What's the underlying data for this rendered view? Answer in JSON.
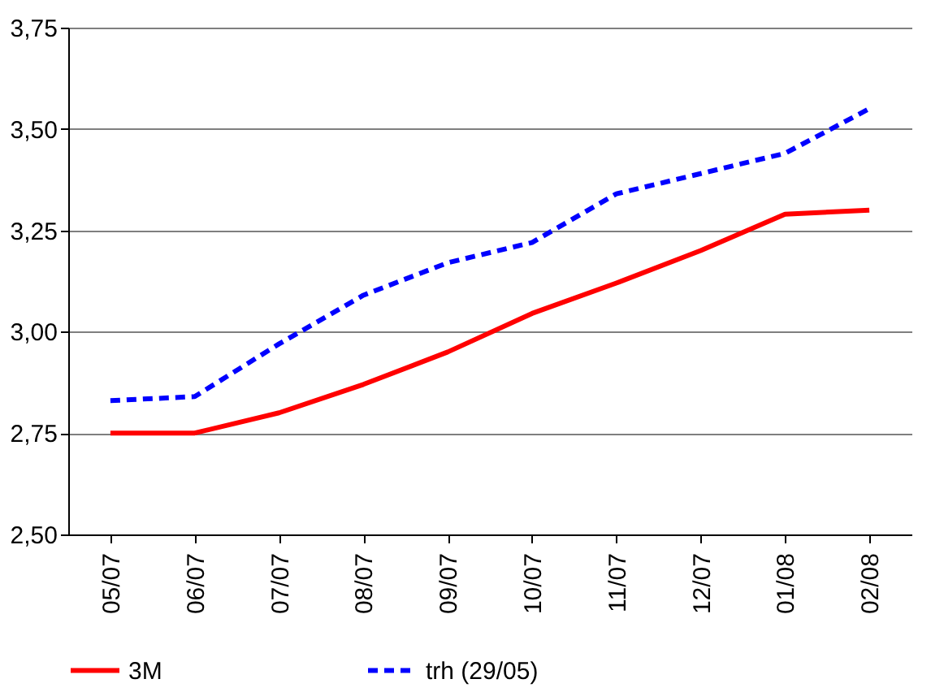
{
  "chart_data": {
    "type": "line",
    "categories": [
      "05/07",
      "06/07",
      "07/07",
      "08/07",
      "09/07",
      "10/07",
      "11/07",
      "12/07",
      "01/08",
      "02/08"
    ],
    "series": [
      {
        "name": "3M",
        "color": "#ff0000",
        "line_style": "solid",
        "values": [
          2.75,
          2.75,
          2.8,
          2.87,
          2.95,
          3.045,
          3.12,
          3.2,
          3.29,
          3.3
        ]
      },
      {
        "name": "trh (29/05)",
        "color": "#0000ff",
        "line_style": "dashed",
        "values": [
          2.83,
          2.84,
          2.97,
          3.09,
          3.17,
          3.22,
          3.34,
          3.39,
          3.44,
          3.55
        ]
      }
    ],
    "ylim": [
      2.5,
      3.75
    ],
    "yticks": [
      {
        "value": 2.5,
        "label": "2,50"
      },
      {
        "value": 2.75,
        "label": "2,75"
      },
      {
        "value": 3.0,
        "label": "3,00"
      },
      {
        "value": 3.25,
        "label": "3,25"
      },
      {
        "value": 3.5,
        "label": "3,50"
      },
      {
        "value": 3.75,
        "label": "3,75"
      }
    ],
    "grid": "y",
    "legend": "bottom",
    "marker": "none"
  }
}
